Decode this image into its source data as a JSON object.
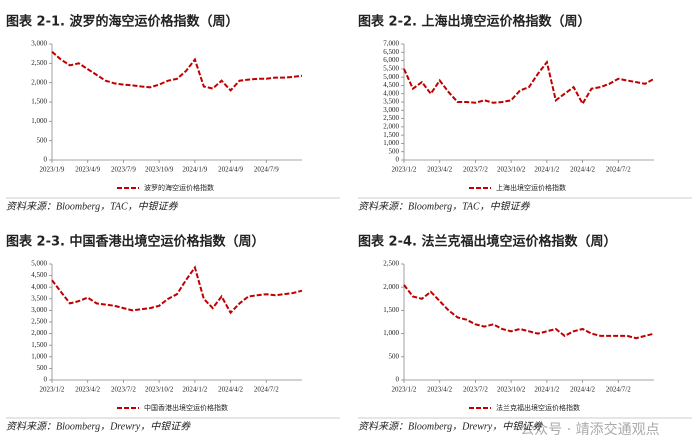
{
  "chart_data": [
    {
      "type": "line",
      "title": "图表 2-1. 波罗的海空运价格指数（周）",
      "source": "资料来源：Bloomberg，TAC，中银证券",
      "categories": [
        "2023/1/9",
        null,
        null,
        null,
        "2023/4/9",
        null,
        null,
        null,
        "2023/7/9",
        null,
        null,
        null,
        "2023/10/9",
        null,
        null,
        null,
        "2024/1/9",
        null,
        null,
        null,
        "2024/4/9",
        null,
        null,
        null,
        "2024/7/9",
        null,
        null,
        null,
        null
      ],
      "series": [
        {
          "name": "波罗的海空运价格指数",
          "color": "#c00000",
          "values": [
            2800,
            2600,
            2450,
            2500,
            2350,
            2200,
            2050,
            1980,
            1950,
            1930,
            1900,
            1880,
            1950,
            2050,
            2100,
            2300,
            2600,
            1900,
            1850,
            2050,
            1800,
            2050,
            2080,
            2100,
            2100,
            2130,
            2130,
            2150,
            2180
          ]
        }
      ],
      "ylim": [
        0,
        3000
      ],
      "yticks": [
        0,
        500,
        {
          "value": 1000,
          "label": "1,000"
        },
        {
          "value": 1500,
          "label": "1,500"
        },
        {
          "value": 2000,
          "label": "2,000"
        },
        {
          "value": 2500,
          "label": "2,500"
        },
        {
          "value": 3000,
          "label": "3,000"
        }
      ]
    },
    {
      "type": "line",
      "title": "图表 2-2. 上海出境空运价格指数（周）",
      "source": "资料来源：Bloomberg，TAC，中银证券",
      "categories": [
        "2023/1/2",
        null,
        null,
        null,
        "2023/4/2",
        null,
        null,
        null,
        "2023/7/2",
        null,
        null,
        null,
        "2023/10/2",
        null,
        null,
        null,
        "2024/1/2",
        null,
        null,
        null,
        "2024/4/2",
        null,
        null,
        null,
        "2024/7/2",
        null,
        null,
        null,
        null
      ],
      "series": [
        {
          "name": "上海出境空运价格指数",
          "color": "#c00000",
          "values": [
            5500,
            4300,
            4700,
            4000,
            4800,
            4100,
            3500,
            3500,
            3450,
            3600,
            3450,
            3500,
            3600,
            4200,
            4400,
            5200,
            5900,
            3600,
            4000,
            4400,
            3400,
            4300,
            4400,
            4600,
            4900,
            4800,
            4700,
            4600,
            4900
          ]
        }
      ],
      "ylim": [
        0,
        7000
      ],
      "yticks": [
        0,
        500,
        {
          "value": 1000,
          "label": "1,000"
        },
        {
          "value": 1500,
          "label": "1,500"
        },
        {
          "value": 2000,
          "label": "2,000"
        },
        {
          "value": 2500,
          "label": "2,500"
        },
        {
          "value": 3000,
          "label": "3,000"
        },
        {
          "value": 3500,
          "label": "3,500"
        },
        {
          "value": 4000,
          "label": "4,000"
        },
        {
          "value": 4500,
          "label": "4,500"
        },
        {
          "value": 5000,
          "label": "5,000"
        },
        {
          "value": 5500,
          "label": "5,500"
        },
        {
          "value": 6000,
          "label": "6,000"
        },
        {
          "value": 6500,
          "label": "6,500"
        },
        {
          "value": 7000,
          "label": "7,000"
        }
      ]
    },
    {
      "type": "line",
      "title": "图表 2-3. 中国香港出境空运价格指数（周）",
      "source": "资料来源：Bloomberg，Drewry，中银证券",
      "categories": [
        "2023/1/2",
        null,
        null,
        null,
        "2023/4/2",
        null,
        null,
        null,
        "2023/7/2",
        null,
        null,
        null,
        "2023/10/2",
        null,
        null,
        null,
        "2024/1/2",
        null,
        null,
        null,
        "2024/4/2",
        null,
        null,
        null,
        "2024/7/2",
        null,
        null,
        null,
        null
      ],
      "series": [
        {
          "name": "中国香港出境空运价格指数",
          "color": "#c00000",
          "values": [
            4300,
            3800,
            3300,
            3400,
            3550,
            3300,
            3250,
            3200,
            3100,
            3000,
            3050,
            3100,
            3200,
            3500,
            3700,
            4300,
            4850,
            3500,
            3100,
            3600,
            2900,
            3300,
            3600,
            3650,
            3700,
            3650,
            3700,
            3750,
            3850
          ]
        }
      ],
      "ylim": [
        0,
        5000
      ],
      "yticks": [
        0,
        500,
        {
          "value": 1000,
          "label": "1,000"
        },
        {
          "value": 1500,
          "label": "1,500"
        },
        {
          "value": 2000,
          "label": "2,000"
        },
        {
          "value": 2500,
          "label": "2,500"
        },
        {
          "value": 3000,
          "label": "3,000"
        },
        {
          "value": 3500,
          "label": "3,500"
        },
        {
          "value": 4000,
          "label": "4,000"
        },
        {
          "value": 4500,
          "label": "4,500"
        },
        {
          "value": 5000,
          "label": "5,000"
        }
      ]
    },
    {
      "type": "line",
      "title": "图表 2-4. 法兰克福出境空运价格指数（周）",
      "source": "资料来源：Bloomberg，Drewry，中银证券",
      "categories": [
        "2023/1/2",
        null,
        null,
        null,
        "2023/4/2",
        null,
        null,
        null,
        "2023/7/2",
        null,
        null,
        null,
        "2023/10/2",
        null,
        null,
        null,
        "2024/1/2",
        null,
        null,
        null,
        "2024/4/2",
        null,
        null,
        null,
        "2024/7/2",
        null,
        null,
        null,
        null
      ],
      "series": [
        {
          "name": "法兰克福出境空运价格指数",
          "color": "#c00000",
          "values": [
            2050,
            1800,
            1750,
            1900,
            1700,
            1500,
            1350,
            1300,
            1200,
            1150,
            1200,
            1100,
            1050,
            1100,
            1050,
            1000,
            1050,
            1100,
            950,
            1050,
            1100,
            1000,
            950,
            950,
            950,
            950,
            900,
            950,
            1000
          ]
        }
      ],
      "ylim": [
        0,
        2500
      ],
      "yticks": [
        0,
        500,
        {
          "value": 1000,
          "label": "1,000"
        },
        {
          "value": 1500,
          "label": "1,500"
        },
        {
          "value": 2000,
          "label": "2,000"
        },
        {
          "value": 2500,
          "label": "2,500"
        }
      ]
    }
  ],
  "watermark": "公众号 · 靖添交通观点"
}
